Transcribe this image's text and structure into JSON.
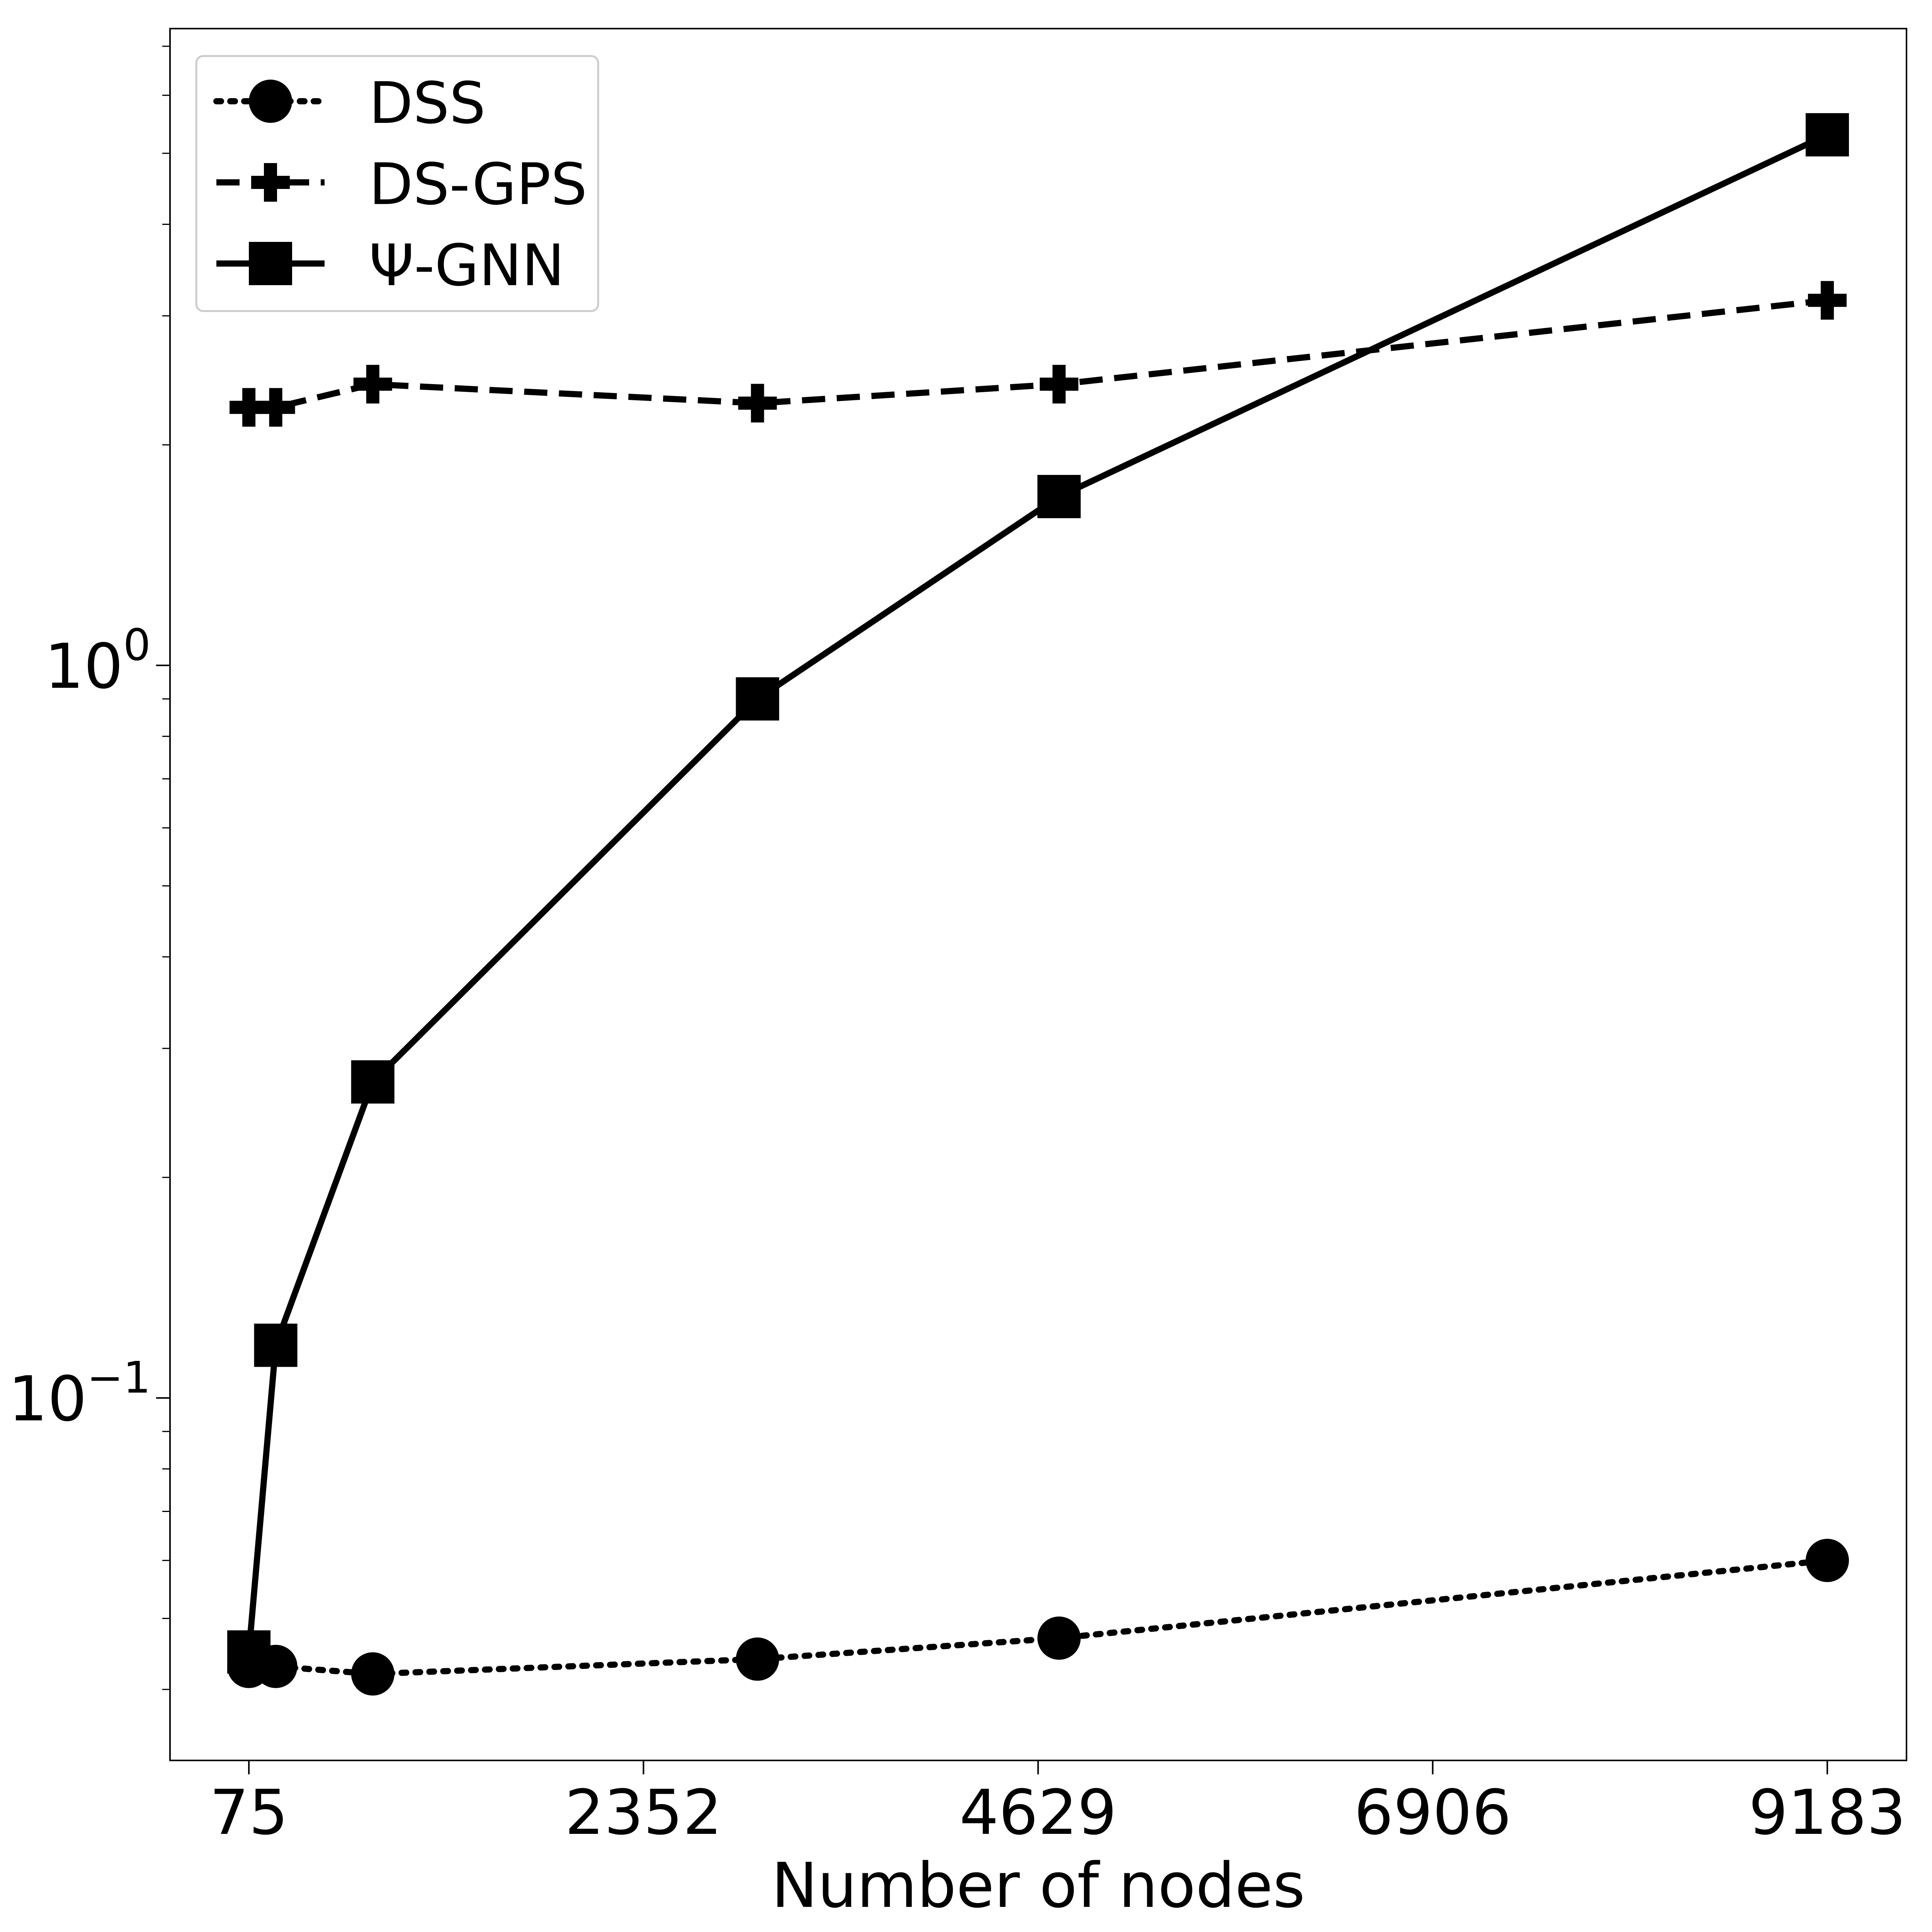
{
  "chart_data": {
    "type": "line",
    "xlabel": "Number of nodes",
    "ylabel": "",
    "title": "",
    "x_ticks": [
      75,
      2352,
      4629,
      6906,
      9183
    ],
    "xlim": [
      -380,
      9640
    ],
    "y_scale": "log",
    "ylim": [
      0.032,
      7.4
    ],
    "y_ticks": [
      {
        "value": 0.1,
        "base": "10",
        "exponent": "−1"
      },
      {
        "value": 1,
        "base": "10",
        "exponent": "0"
      }
    ],
    "grid": false,
    "legend_position": "top-left",
    "series": [
      {
        "name": "DSS",
        "line_style": "dotted",
        "marker": "circle",
        "color": "#000000",
        "x": [
          75,
          230,
          790,
          3010,
          4750,
          9183
        ],
        "y": [
          0.043,
          0.043,
          0.042,
          0.044,
          0.047,
          0.06
        ]
      },
      {
        "name": "DS-GPS",
        "line_style": "dashed",
        "marker": "plus",
        "color": "#000000",
        "x": [
          75,
          230,
          790,
          3010,
          4750,
          9183
        ],
        "y": [
          2.25,
          2.25,
          2.42,
          2.28,
          2.42,
          3.15
        ]
      },
      {
        "name": "Ψ-GNN",
        "line_style": "solid",
        "marker": "square",
        "color": "#000000",
        "x": [
          75,
          230,
          790,
          3010,
          4750,
          9183
        ],
        "y": [
          0.045,
          0.118,
          0.27,
          0.9,
          1.7,
          5.3
        ]
      }
    ]
  }
}
